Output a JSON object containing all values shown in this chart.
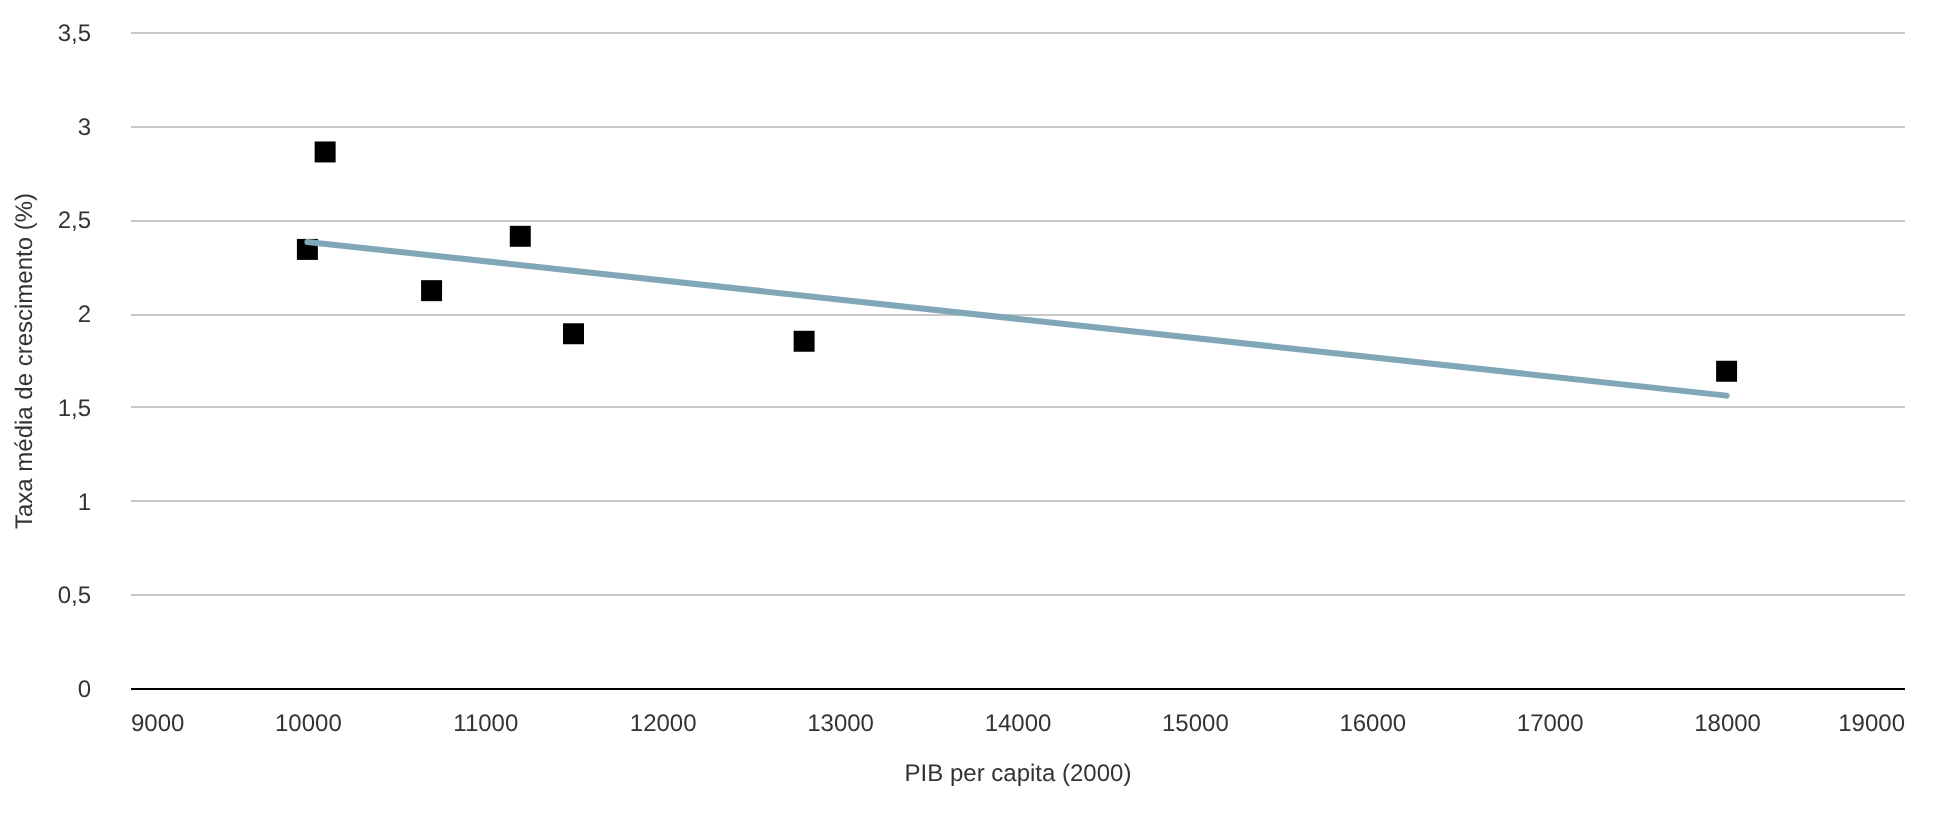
{
  "chart_data": {
    "type": "scatter",
    "xlabel": "PIB per capita (2000)",
    "ylabel": "Taxa média de crescimento (%)",
    "xlim": [
      9000,
      19000
    ],
    "xticks": [
      9000,
      10000,
      11000,
      12000,
      13000,
      14000,
      15000,
      16000,
      17000,
      18000,
      19000
    ],
    "ylim": [
      0,
      3.5
    ],
    "yticks": [
      {
        "value": 0,
        "label": "0"
      },
      {
        "value": 0.5,
        "label": "0,5"
      },
      {
        "value": 1,
        "label": "1"
      },
      {
        "value": 1.5,
        "label": "1,5"
      },
      {
        "value": 2,
        "label": "2"
      },
      {
        "value": 2.5,
        "label": "2,5"
      },
      {
        "value": 3,
        "label": "3"
      },
      {
        "value": 3.5,
        "label": "3,5"
      }
    ],
    "grid": "y",
    "series": [
      {
        "type": "scatter",
        "marker": "square",
        "color": "#000000",
        "x": [
          10100,
          10000,
          10700,
          11200,
          11500,
          12800,
          18000
        ],
        "values": [
          2.86,
          2.34,
          2.12,
          2.41,
          1.89,
          1.85,
          1.69
        ]
      },
      {
        "type": "line",
        "color": "#7fa7b8",
        "line_style": "solid",
        "x": [
          10000,
          18000
        ],
        "values": [
          2.38,
          1.56
        ]
      }
    ]
  }
}
